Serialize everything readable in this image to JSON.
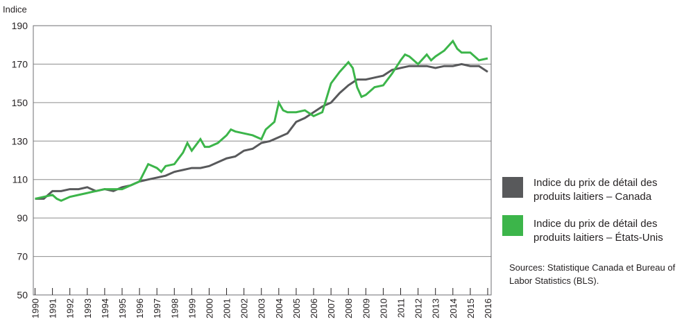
{
  "chart_data": {
    "type": "line",
    "y_label": "Indice",
    "xlim": [
      1989.9,
      2016.2
    ],
    "ylim": [
      50,
      190
    ],
    "xticks": [
      1990,
      1991,
      1992,
      1993,
      1994,
      1995,
      1996,
      1997,
      1998,
      1999,
      2000,
      2001,
      2002,
      2003,
      2004,
      2005,
      2006,
      2007,
      2008,
      2009,
      2010,
      2011,
      2012,
      2013,
      2014,
      2015,
      2016
    ],
    "yticks": [
      50,
      70,
      90,
      110,
      130,
      150,
      170,
      190
    ],
    "grid": true,
    "legend": "right",
    "series": [
      {
        "name": "Indice du prix de détail des produits laitiers – Canada",
        "color": "#58595b",
        "x": [
          1990,
          1990.5,
          1991,
          1991.5,
          1992,
          1992.5,
          1993,
          1993.5,
          1994,
          1994.5,
          1995,
          1995.5,
          1996,
          1996.5,
          1997,
          1997.5,
          1998,
          1998.5,
          1999,
          1999.5,
          2000,
          2000.5,
          2001,
          2001.5,
          2002,
          2002.5,
          2003,
          2003.5,
          2004,
          2004.5,
          2005,
          2005.5,
          2006,
          2006.5,
          2007,
          2007.5,
          2008,
          2008.5,
          2009,
          2009.5,
          2010,
          2010.5,
          2011,
          2011.5,
          2012,
          2012.5,
          2013,
          2013.5,
          2014,
          2014.5,
          2015,
          2015.5,
          2016
        ],
        "values": [
          100,
          100,
          104,
          104,
          105,
          105,
          106,
          104,
          105,
          104,
          106,
          107,
          109,
          110,
          111,
          112,
          114,
          115,
          116,
          116,
          117,
          119,
          121,
          122,
          125,
          126,
          129,
          130,
          132,
          134,
          140,
          142,
          145,
          148,
          150,
          155,
          159,
          162,
          162,
          163,
          164,
          167,
          168,
          169,
          169,
          169,
          168,
          169,
          169,
          170,
          169,
          169,
          166
        ]
      },
      {
        "name": "Indice du prix de détail des produits laitiers – États-Unis",
        "color": "#3cb54a",
        "x": [
          1990,
          1990.5,
          1991,
          1991.25,
          1991.5,
          1992,
          1992.5,
          1993,
          1993.5,
          1994,
          1994.5,
          1995,
          1995.5,
          1996,
          1996.5,
          1997,
          1997.25,
          1997.5,
          1998,
          1998.5,
          1998.75,
          1999,
          1999.5,
          1999.75,
          2000,
          2000.5,
          2001,
          2001.25,
          2001.5,
          2002,
          2002.5,
          2003,
          2003.25,
          2003.75,
          2004,
          2004.25,
          2004.5,
          2005,
          2005.5,
          2006,
          2006.5,
          2007,
          2007.5,
          2008,
          2008.25,
          2008.5,
          2008.75,
          2009,
          2009.5,
          2010,
          2010.5,
          2011,
          2011.25,
          2011.5,
          2012,
          2012.5,
          2012.75,
          2013,
          2013.5,
          2014,
          2014.25,
          2014.5,
          2015,
          2015.5,
          2016
        ],
        "values": [
          100,
          101,
          102,
          100,
          99,
          101,
          102,
          103,
          104,
          105,
          105,
          105,
          107,
          109,
          118,
          116,
          114,
          117,
          118,
          124,
          129,
          125,
          131,
          127,
          127,
          129,
          133,
          136,
          135,
          134,
          133,
          131,
          136,
          140,
          150,
          146,
          145,
          145,
          146,
          143,
          145,
          160,
          166,
          171,
          168,
          158,
          153,
          154,
          158,
          159,
          165,
          172,
          175,
          174,
          170,
          175,
          172,
          174,
          177,
          182,
          178,
          176,
          176,
          172,
          173
        ]
      }
    ],
    "source": "Sources: Statistique Canada et Bureau of Labor Statistics (BLS)."
  }
}
